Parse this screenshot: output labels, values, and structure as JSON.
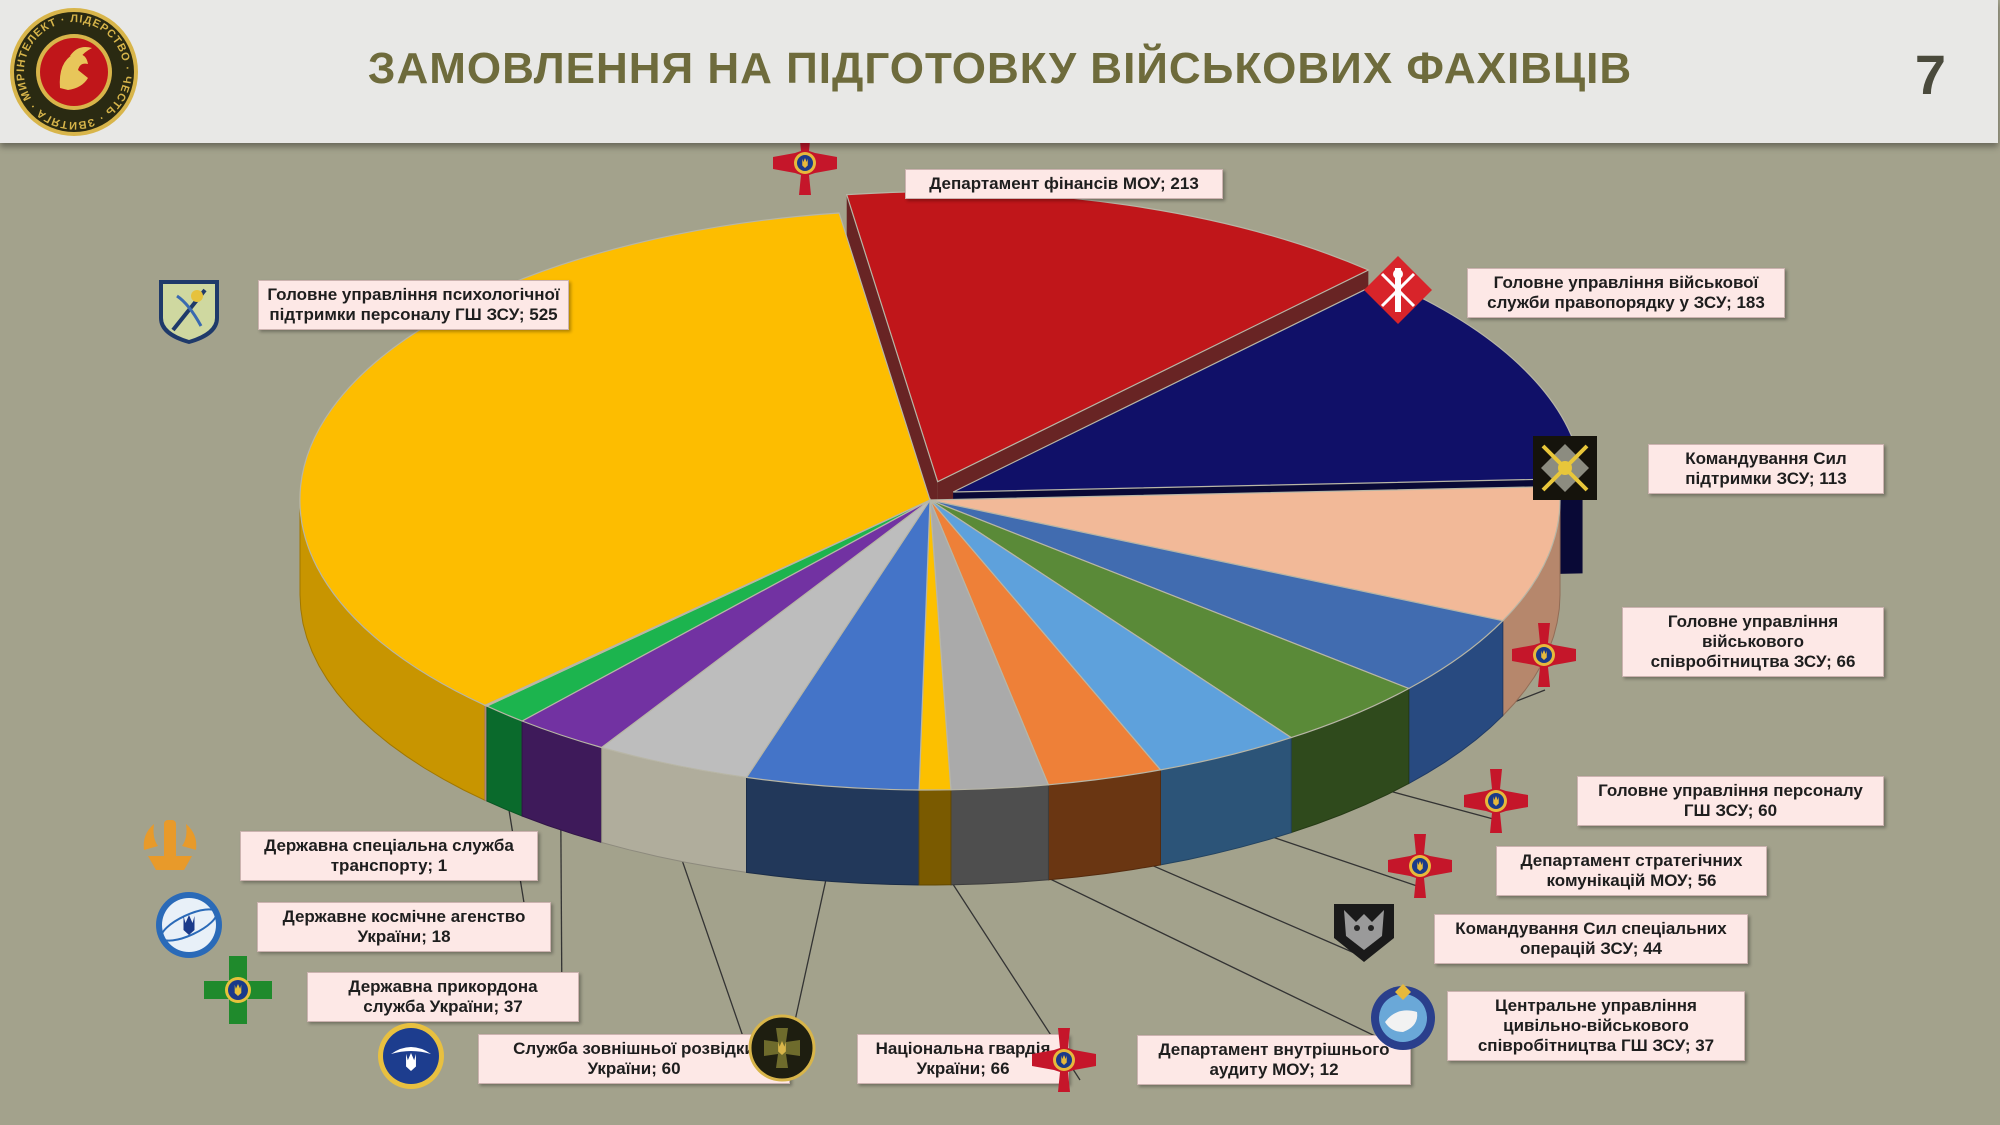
{
  "header": {
    "title": "ЗАМОВЛЕННЯ НА ПІДГОТОВКУ ВІЙСЬКОВИХ ФАХІВЦІВ",
    "page_number": "7",
    "logo_text": "ІНТЕЛЕКТ · ЛІДЕРСТВО · ЧЕСТЬ · ЗВИТЯГА · МИР"
  },
  "chart_data": {
    "type": "pie",
    "title": "ЗАМОВЛЕННЯ НА ПІДГОТОВКУ ВІЙСЬКОВИХ ФАХІВЦІВ",
    "separator": "; ",
    "slices": [
      {
        "label": "Департамент фінансів МОУ",
        "value": 213,
        "color": "#c0161a",
        "side": "#7a2a2a",
        "explode": 1
      },
      {
        "label": "Головне управління військової служби правопорядку у ЗСУ",
        "value": 183,
        "color": "#101068",
        "side": "#0a0a40",
        "explode": 1
      },
      {
        "label": "Командування Сил підтримки ЗСУ",
        "value": 113,
        "color": "#f2b998",
        "side": "#b6876c"
      },
      {
        "label": "Головне управління військового співробітництва ЗСУ",
        "value": 66,
        "color": "#416cb0",
        "side": "#284a80"
      },
      {
        "label": "Головне управління персоналу ГШ ЗСУ",
        "value": 60,
        "color": "#5a8a38",
        "side": "#2f4a1c"
      },
      {
        "label": "Департамент стратегічних комунікацій МОУ",
        "value": 56,
        "color": "#5ea1dc",
        "side": "#2c5478"
      },
      {
        "label": "Командування Сил спеціальних операцій ЗСУ",
        "value": 44,
        "color": "#ee8038",
        "side": "#6a3612"
      },
      {
        "label": "Центральне управління цивільно-військового співробітництва ГШ ЗСУ",
        "value": 37,
        "color": "#aaaaaa",
        "side": "#4e4e4e"
      },
      {
        "label": "Департамент внутрішнього аудиту МОУ",
        "value": 12,
        "color": "#fcc000",
        "side": "#7a5a00"
      },
      {
        "label": "Національна гвардія України",
        "value": 66,
        "color": "#4474c8",
        "side": "#22385a"
      },
      {
        "label": "Служба зовнішньої розвідки України",
        "value": 60,
        "color": "#bdbdbd",
        "side": "#b0ad9c"
      },
      {
        "label": "Державна прикордона служба України",
        "value": 37,
        "color": "#7232a2",
        "side": "#3e1a5a"
      },
      {
        "label": "Державне космічне агенство України",
        "value": 18,
        "color": "#1cb44e",
        "side": "#0a6a2c"
      },
      {
        "label": "Державна спеціальна служба транспорту",
        "value": 1,
        "color": "#efb8aa",
        "side": "#c29587"
      },
      {
        "label": "Головне управління психологічної підтримки персоналу ГШ ЗСУ",
        "value": 525,
        "color": "#fdbd00",
        "side": "#c89500"
      }
    ]
  }
}
